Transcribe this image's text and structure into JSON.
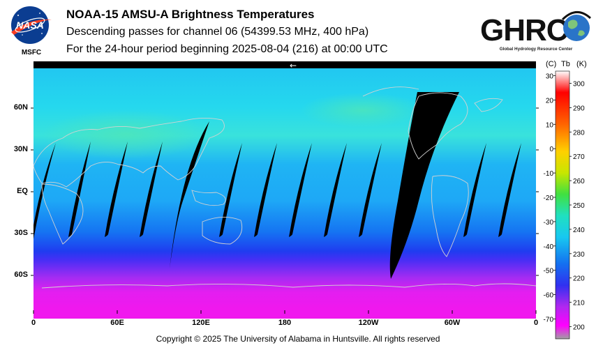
{
  "header": {
    "title": "NOAA-15 AMSU-A Brightness Temperatures",
    "subtitle": "Descending passes for channel 06 (54399.53 MHz, 400 hPa)",
    "period": "For the 24-hour period beginning 2025-08-04 (216) at 00:00 UTC"
  },
  "logos": {
    "left_name": "NASA",
    "left_sub": "MSFC",
    "right_name": "GHRC",
    "right_sub": "Global Hydrology Resource Center"
  },
  "map": {
    "lat_labels": [
      "60N",
      "30N",
      "EQ",
      "30S",
      "60S"
    ],
    "lon_labels": [
      "0",
      "60E",
      "120E",
      "180",
      "120W",
      "60W",
      "0"
    ],
    "arrow_glyph": "←"
  },
  "scale": {
    "header_c": "(C)",
    "header_tb": "Tb",
    "header_k": "(K)",
    "celsius_ticks": [
      "30",
      "20",
      "10",
      "0",
      "-10",
      "-20",
      "-30",
      "-40",
      "-50",
      "-60",
      "-70"
    ],
    "kelvin_ticks": [
      "300",
      "290",
      "280",
      "270",
      "260",
      "250",
      "240",
      "230",
      "220",
      "210",
      "200"
    ],
    "kelvin_range": [
      195,
      305
    ]
  },
  "footer": {
    "copyright": "Copyright © 2025 The University of Alabama in Huntsville.  All rights reserved"
  },
  "colors": {
    "swath_gap": "#000000",
    "coastline": "#c8c8c8"
  }
}
